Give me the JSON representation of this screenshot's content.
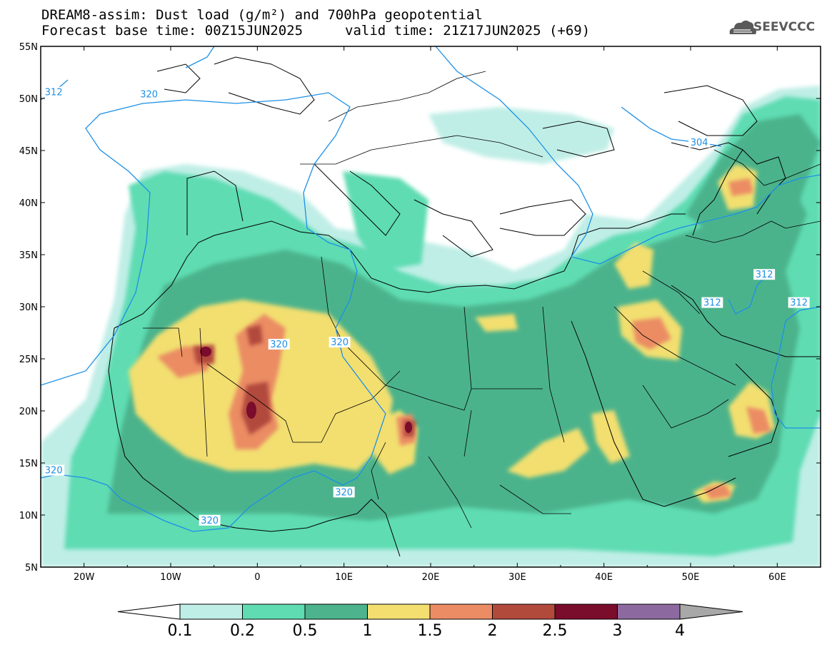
{
  "title": {
    "line1": "DREAM8-assim: Dust load (g/m²) and 700hPa geopotential",
    "line2": "Forecast base time: 00Z15JUN2025",
    "line2b": "valid time: 21Z17JUN2025 (+69)"
  },
  "logo": {
    "text": "SEEVCCC",
    "icon": "cloud-icon"
  },
  "axes": {
    "lat_labels": [
      "55N",
      "50N",
      "45N",
      "40N",
      "35N",
      "30N",
      "25N",
      "20N",
      "15N",
      "10N",
      "5N"
    ],
    "lat_values": [
      55,
      50,
      45,
      40,
      35,
      30,
      25,
      20,
      15,
      10,
      5
    ],
    "lon_labels": [
      "20W",
      "10W",
      "0",
      "10E",
      "20E",
      "30E",
      "40E",
      "50E",
      "60E"
    ],
    "lon_values": [
      -20,
      -10,
      0,
      10,
      20,
      30,
      40,
      50,
      60
    ],
    "lon_range": [
      -25,
      65
    ],
    "lat_range": [
      5,
      55
    ]
  },
  "contours": {
    "labels": [
      {
        "text": "312",
        "lon": -23.5,
        "lat": 50.5
      },
      {
        "text": "320",
        "lon": -12.5,
        "lat": 50.3
      },
      {
        "text": "320",
        "lon": -23.5,
        "lat": 14.2
      },
      {
        "text": "320",
        "lon": 2.5,
        "lat": 26.3
      },
      {
        "text": "320",
        "lon": 9.5,
        "lat": 26.5
      },
      {
        "text": "320",
        "lon": 10.0,
        "lat": 12.1
      },
      {
        "text": "320",
        "lon": -5.5,
        "lat": 9.4
      },
      {
        "text": "304",
        "lon": 51.0,
        "lat": 45.7
      },
      {
        "text": "312",
        "lon": 58.5,
        "lat": 33.0
      },
      {
        "text": "312",
        "lon": 52.5,
        "lat": 30.3
      },
      {
        "text": "312",
        "lon": 62.5,
        "lat": 30.3
      }
    ],
    "color": "#1e90e6"
  },
  "colorbar": {
    "labels": [
      "0.1",
      "0.2",
      "0.5",
      "1",
      "1.5",
      "2",
      "2.5",
      "3",
      "4"
    ],
    "colors": [
      "#bfeee6",
      "#5fdcb2",
      "#4cb38c",
      "#f2df70",
      "#eb8c64",
      "#b24a3c",
      "#7a0c2c",
      "#8c6aa0"
    ],
    "under_color": "#ffffff",
    "over_color": "#a8a8a8"
  }
}
